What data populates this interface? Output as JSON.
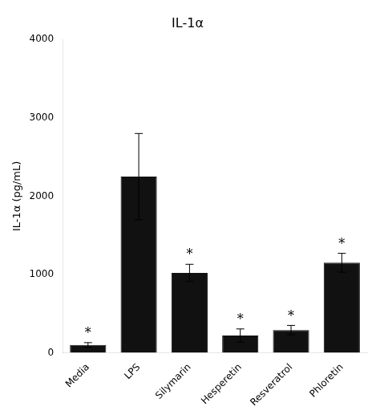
{
  "chart_data": {
    "type": "bar",
    "title": "IL-1α",
    "ylabel": "IL-1α (pg/mL)",
    "categories": [
      "Media",
      "LPS",
      "Silymarin",
      "Hesperetin",
      "Resveratrol",
      "Phloretin"
    ],
    "values": [
      100,
      2250,
      1020,
      220,
      290,
      1150
    ],
    "errors": [
      30,
      550,
      110,
      85,
      60,
      120
    ],
    "color": "#111111",
    "ylim": [
      0,
      4000
    ],
    "yticks": [
      0,
      1000,
      2000,
      3000,
      4000
    ],
    "grid": false,
    "annotations": [
      {
        "category": "Media",
        "text": "*"
      },
      {
        "category": "Silymarin",
        "text": "*"
      },
      {
        "category": "Hesperetin",
        "text": "*"
      },
      {
        "category": "Resveratrol",
        "text": "*"
      },
      {
        "category": "Phloretin",
        "text": "*"
      }
    ]
  }
}
